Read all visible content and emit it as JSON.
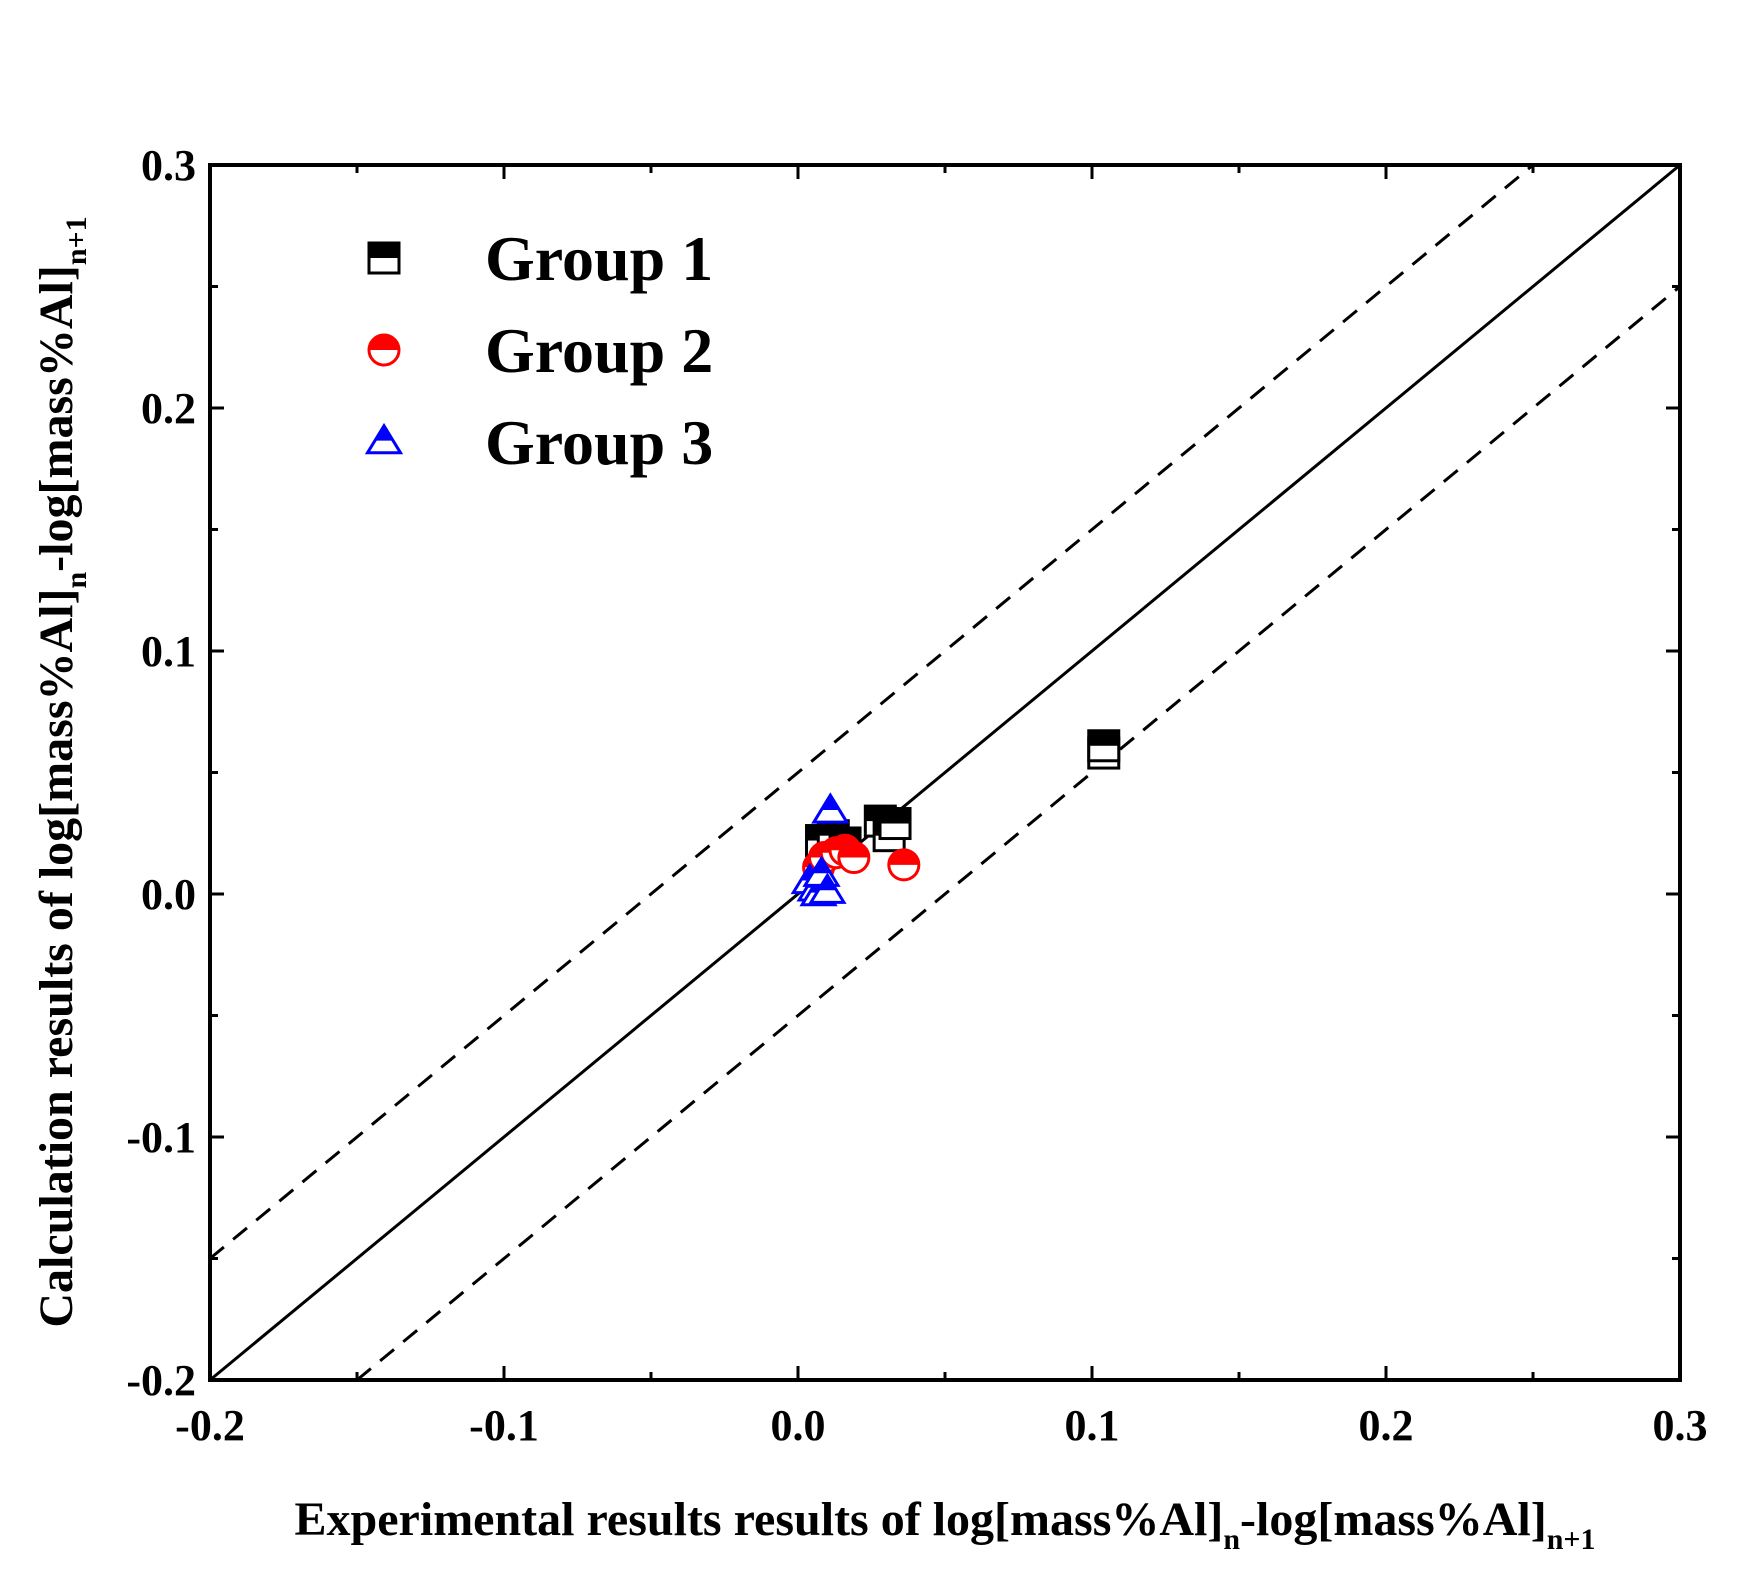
{
  "chart_data": {
    "type": "scatter",
    "title": "",
    "xlabel": {
      "parts": [
        "Experimental results results of log[mass%Al]",
        "n",
        "-log[mass%Al]",
        "n+1"
      ]
    },
    "ylabel": {
      "parts": [
        "Calculation results of log[mass%Al]",
        "n",
        "-log[mass%Al]",
        "n+1"
      ]
    },
    "xlim": [
      -0.2,
      0.3
    ],
    "ylim": [
      -0.2,
      0.3
    ],
    "xticks": [
      -0.2,
      -0.1,
      0.0,
      0.1,
      0.2,
      0.3
    ],
    "yticks": [
      -0.2,
      -0.1,
      0.0,
      0.1,
      0.2,
      0.3
    ],
    "xtick_labels": [
      "-0.2",
      "-0.1",
      "0.0",
      "0.1",
      "0.2",
      "0.3"
    ],
    "ytick_labels": [
      "-0.2",
      "-0.1",
      "0.0",
      "0.1",
      "0.2",
      "0.3"
    ],
    "minor_step": 0.05,
    "grid": false,
    "legend_position": "top-left",
    "reference_lines": [
      {
        "name": "y = x",
        "offset": 0.0,
        "style": "solid"
      },
      {
        "name": "y = x + 0.05",
        "offset": 0.05,
        "style": "dashed"
      },
      {
        "name": "y = x - 0.05",
        "offset": -0.05,
        "style": "dashed"
      }
    ],
    "series": [
      {
        "name": "Group 1",
        "marker": "half-filled-square",
        "color": "#000000",
        "points": [
          {
            "x": 0.008,
            "y": 0.022
          },
          {
            "x": 0.012,
            "y": 0.024
          },
          {
            "x": 0.016,
            "y": 0.021
          },
          {
            "x": 0.028,
            "y": 0.03
          },
          {
            "x": 0.031,
            "y": 0.024
          },
          {
            "x": 0.033,
            "y": 0.029
          },
          {
            "x": 0.104,
            "y": 0.058
          },
          {
            "x": 0.104,
            "y": 0.061
          }
        ]
      },
      {
        "name": "Group 2",
        "marker": "half-filled-circle",
        "color": "#ff0000",
        "points": [
          {
            "x": 0.007,
            "y": 0.011
          },
          {
            "x": 0.009,
            "y": 0.015
          },
          {
            "x": 0.013,
            "y": 0.017
          },
          {
            "x": 0.016,
            "y": 0.018
          },
          {
            "x": 0.019,
            "y": 0.015
          },
          {
            "x": 0.036,
            "y": 0.012
          }
        ]
      },
      {
        "name": "Group 3",
        "marker": "half-filled-triangle",
        "color": "#0000ff",
        "points": [
          {
            "x": 0.004,
            "y": 0.005
          },
          {
            "x": 0.006,
            "y": 0.002
          },
          {
            "x": 0.007,
            "y": 0.0
          },
          {
            "x": 0.008,
            "y": 0.008
          },
          {
            "x": 0.01,
            "y": 0.001
          },
          {
            "x": 0.011,
            "y": 0.034
          }
        ]
      }
    ]
  }
}
